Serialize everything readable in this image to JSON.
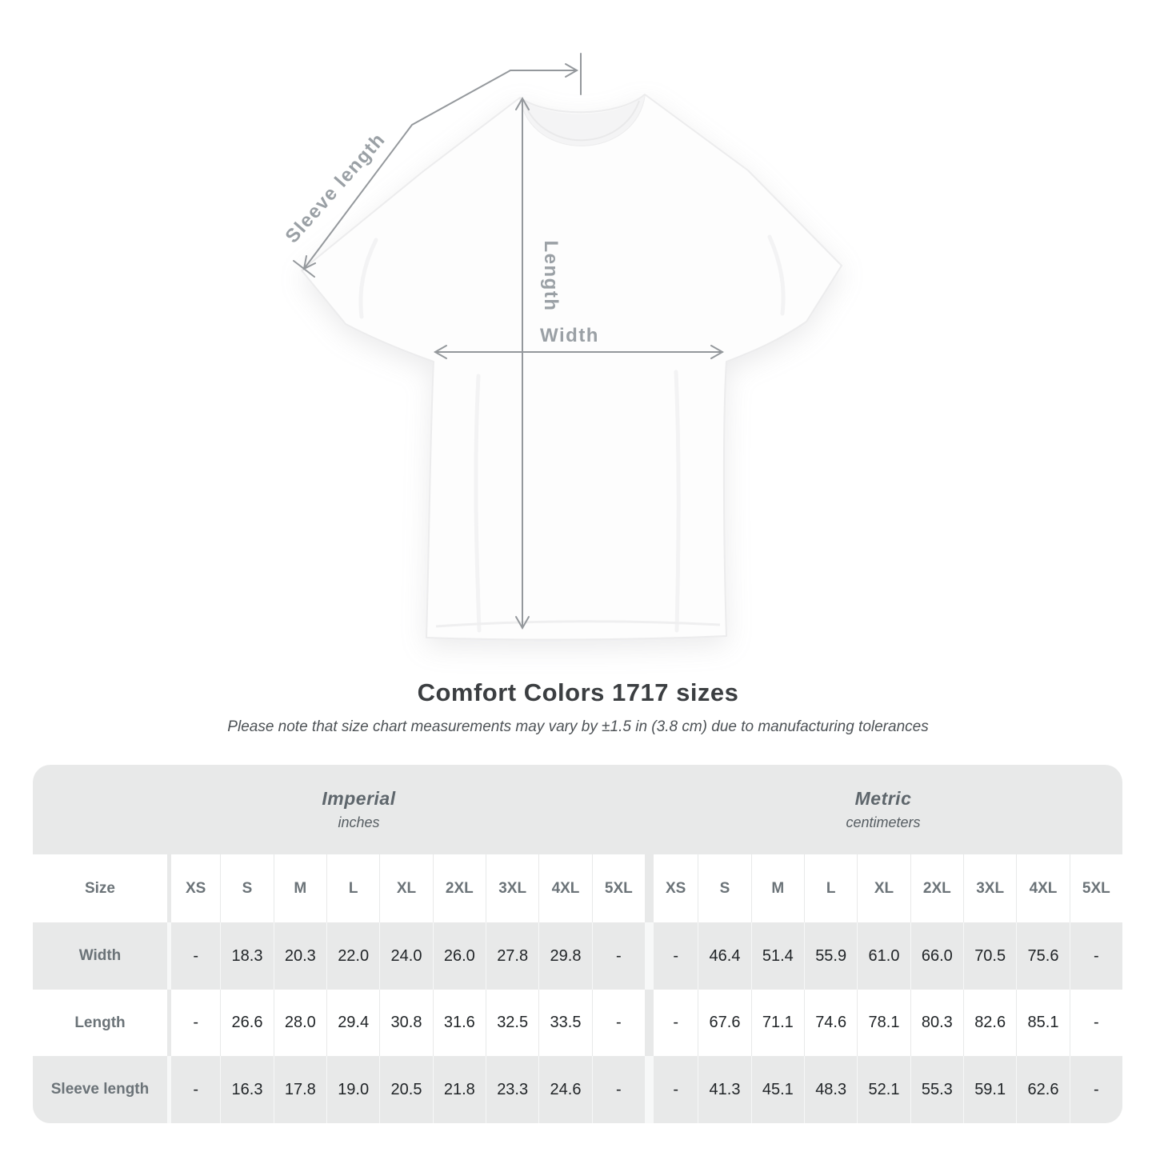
{
  "diagram": {
    "labels": {
      "sleeve_length": "Sleeve length",
      "length": "Length",
      "width": "Width"
    },
    "line_color": "#94989c",
    "label_color": "#9aa0a5"
  },
  "title": "Comfort Colors 1717 sizes",
  "subtitle": "Please note that size chart measurements may vary by ±1.5 in (3.8 cm) due to manufacturing tolerances",
  "table": {
    "sections": [
      {
        "label": "Imperial",
        "sub": "inches"
      },
      {
        "label": "Metric",
        "sub": "centimeters"
      }
    ],
    "size_header": "Size",
    "sizes": [
      "XS",
      "S",
      "M",
      "L",
      "XL",
      "2XL",
      "3XL",
      "4XL",
      "5XL"
    ],
    "rows": [
      {
        "label": "Width",
        "imperial": [
          "-",
          "18.3",
          "20.3",
          "22.0",
          "24.0",
          "26.0",
          "27.8",
          "29.8",
          "-"
        ],
        "metric": [
          "-",
          "46.4",
          "51.4",
          "55.9",
          "61.0",
          "66.0",
          "70.5",
          "75.6",
          "-"
        ]
      },
      {
        "label": "Length",
        "imperial": [
          "-",
          "26.6",
          "28.0",
          "29.4",
          "30.8",
          "31.6",
          "32.5",
          "33.5",
          "-"
        ],
        "metric": [
          "-",
          "67.6",
          "71.1",
          "74.6",
          "78.1",
          "80.3",
          "82.6",
          "85.1",
          "-"
        ]
      },
      {
        "label": "Sleeve length",
        "imperial": [
          "-",
          "16.3",
          "17.8",
          "19.0",
          "20.5",
          "21.8",
          "23.3",
          "24.6",
          "-"
        ],
        "metric": [
          "-",
          "41.3",
          "45.1",
          "48.3",
          "52.1",
          "55.3",
          "59.1",
          "62.6",
          "-"
        ]
      }
    ],
    "colors": {
      "container_bg": "#e8e9e9",
      "white_row_bg": "#ffffff",
      "header_text": "#6b7378",
      "value_text": "#1f2326"
    }
  },
  "chart_data": {
    "type": "table",
    "title": "Comfort Colors 1717 sizes",
    "note": "Please note that size chart measurements may vary by ±1.5 in (3.8 cm) due to manufacturing tolerances",
    "column_groups": [
      "Imperial (inches)",
      "Metric (centimeters)"
    ],
    "categories": [
      "XS",
      "S",
      "M",
      "L",
      "XL",
      "2XL",
      "3XL",
      "4XL",
      "5XL"
    ],
    "series": [
      {
        "name": "Width (in)",
        "values": [
          null,
          18.3,
          20.3,
          22.0,
          24.0,
          26.0,
          27.8,
          29.8,
          null
        ]
      },
      {
        "name": "Length (in)",
        "values": [
          null,
          26.6,
          28.0,
          29.4,
          30.8,
          31.6,
          32.5,
          33.5,
          null
        ]
      },
      {
        "name": "Sleeve length (in)",
        "values": [
          null,
          16.3,
          17.8,
          19.0,
          20.5,
          21.8,
          23.3,
          24.6,
          null
        ]
      },
      {
        "name": "Width (cm)",
        "values": [
          null,
          46.4,
          51.4,
          55.9,
          61.0,
          66.0,
          70.5,
          75.6,
          null
        ]
      },
      {
        "name": "Length (cm)",
        "values": [
          null,
          67.6,
          71.1,
          74.6,
          78.1,
          80.3,
          82.6,
          85.1,
          null
        ]
      },
      {
        "name": "Sleeve length (cm)",
        "values": [
          null,
          41.3,
          45.1,
          48.3,
          52.1,
          55.3,
          59.1,
          62.6,
          null
        ]
      }
    ]
  }
}
